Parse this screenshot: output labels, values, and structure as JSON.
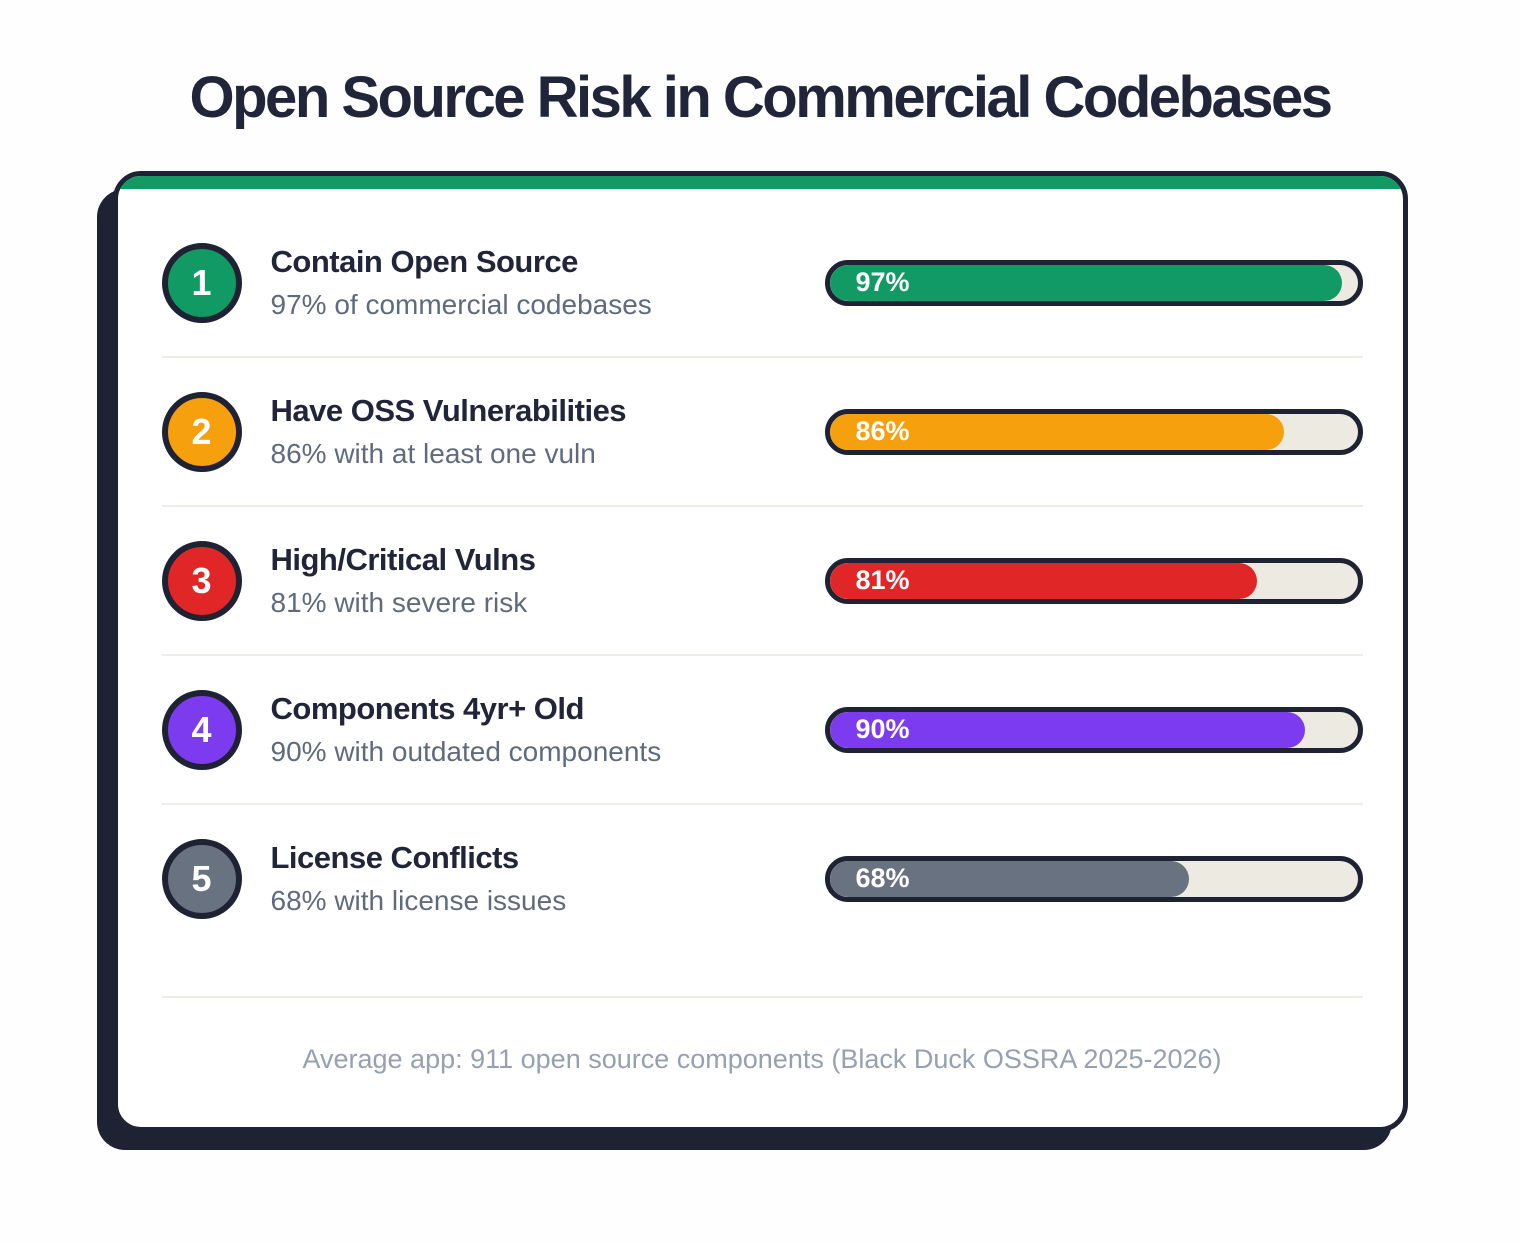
{
  "page": {
    "title": "Open Source Risk in Commercial Codebases",
    "footer": "Average app: 911 open source components (Black Duck OSSRA 2025-2026)"
  },
  "colors": {
    "ink_border": "#1e2233",
    "heading_text": "#212539",
    "subtitle_text": "#5f6b7d",
    "footer_text": "#95a0b1",
    "bar_track": "#edeae1",
    "divider": "#f0ede5",
    "accent_strip": "#119a64"
  },
  "rows": [
    {
      "number": "1",
      "title": "Contain Open Source",
      "subtitle": "97% of commercial codebases",
      "percent": 97,
      "bar_label": "97%",
      "color": "#119a64"
    },
    {
      "number": "2",
      "title": "Have OSS Vulnerabilities",
      "subtitle": "86% with at least one vuln",
      "percent": 86,
      "bar_label": "86%",
      "color": "#f5a00c"
    },
    {
      "number": "3",
      "title": "High/Critical Vulns",
      "subtitle": "81% with severe risk",
      "percent": 81,
      "bar_label": "81%",
      "color": "#e02626"
    },
    {
      "number": "4",
      "title": "Components 4yr+ Old",
      "subtitle": "90% with outdated components",
      "percent": 90,
      "bar_label": "90%",
      "color": "#7c3bee"
    },
    {
      "number": "5",
      "title": "License Conflicts",
      "subtitle": "68% with license issues",
      "percent": 68,
      "bar_label": "68%",
      "color": "#697280"
    }
  ],
  "chart_data": {
    "type": "bar",
    "orientation": "horizontal",
    "title": "Open Source Risk in Commercial Codebases",
    "categories": [
      "Contain Open Source",
      "Have OSS Vulnerabilities",
      "High/Critical Vulns",
      "Components 4yr+ Old",
      "License Conflicts"
    ],
    "values": [
      97,
      86,
      81,
      90,
      68
    ],
    "data_labels": [
      "97%",
      "86%",
      "81%",
      "90%",
      "68%"
    ],
    "descriptions": [
      "97% of commercial codebases",
      "86% with at least one vuln",
      "81% with severe risk",
      "90% with outdated components",
      "68% with license issues"
    ],
    "bar_colors": [
      "#119a64",
      "#f5a00c",
      "#e02626",
      "#7c3bee",
      "#697280"
    ],
    "xlim": [
      0,
      100
    ],
    "unit": "%",
    "grid": false,
    "legend": false,
    "annotation": "Average app: 911 open source components (Black Duck OSSRA 2025-2026)",
    "source": "Black Duck OSSRA 2025-2026"
  }
}
